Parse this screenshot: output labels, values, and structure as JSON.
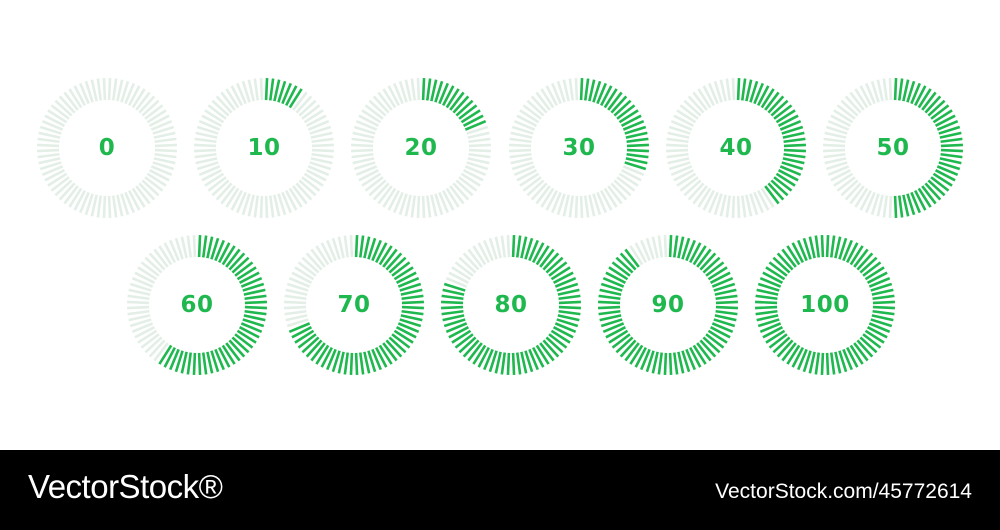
{
  "colors": {
    "active": "#1fb84f",
    "inactive": "#e3efe6",
    "label": "#1fb84f"
  },
  "gauges": [
    {
      "label": "0",
      "fraction": 0.0
    },
    {
      "label": "10",
      "fraction": 0.1
    },
    {
      "label": "20",
      "fraction": 0.2
    },
    {
      "label": "30",
      "fraction": 0.3
    },
    {
      "label": "40",
      "fraction": 0.4
    },
    {
      "label": "50",
      "fraction": 0.5
    },
    {
      "label": "60",
      "fraction": 0.6
    },
    {
      "label": "70",
      "fraction": 0.7
    },
    {
      "label": "80",
      "fraction": 0.8
    },
    {
      "label": "90",
      "fraction": 0.9
    },
    {
      "label": "100",
      "fraction": 1.0
    }
  ],
  "footer": {
    "brand": "VectorStock®",
    "stock_id": "VectorStock.com/45772614"
  }
}
